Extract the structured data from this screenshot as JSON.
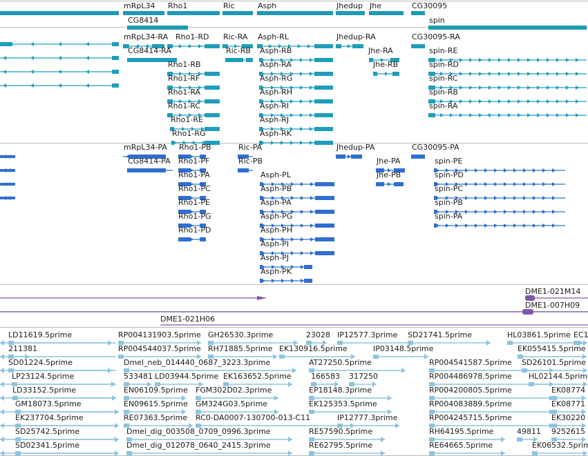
{
  "colors": {
    "gene": "#1e9bb0",
    "mrna": "#1f9dbb",
    "protein": "#2f6fd0",
    "clone": "#7f5aa8",
    "est": "#8cc4e2",
    "divider": "#b9b9b9"
  },
  "tracks": {
    "genes": {
      "features": [
        {
          "label": "mRpL34"
        },
        {
          "label": "Rho1"
        },
        {
          "label": "Ric"
        },
        {
          "label": "Asph"
        },
        {
          "label": "Jhedup"
        },
        {
          "label": "Jhe"
        },
        {
          "label": "CG30095"
        },
        {
          "label": "CG8414"
        },
        {
          "label": "spin"
        }
      ]
    },
    "mrnas": {
      "features": [
        {
          "label": "mRpL34-RA"
        },
        {
          "label": "Rho1-RD"
        },
        {
          "label": "Ric-RA"
        },
        {
          "label": "Asph-RL"
        },
        {
          "label": "Jhedup-RA"
        },
        {
          "label": "CG30095-RA"
        },
        {
          "label": "CG8414-RA"
        },
        {
          "label": "Ric-RB"
        },
        {
          "label": "Asph-RB"
        },
        {
          "label": "Jhe-RA"
        },
        {
          "label": "spin-RE"
        },
        {
          "label": "Rho1-RB"
        },
        {
          "label": "Asph-RA"
        },
        {
          "label": "Jhe-RB"
        },
        {
          "label": "spin-RD"
        },
        {
          "label": "Rho1-RF"
        },
        {
          "label": "Asph-RG"
        },
        {
          "label": "spin-RC"
        },
        {
          "label": "Rho1-RA"
        },
        {
          "label": "Asph-RH"
        },
        {
          "label": "spin-RB"
        },
        {
          "label": "Rho1-RC"
        },
        {
          "label": "Asph-RI"
        },
        {
          "label": "spin-RA"
        },
        {
          "label": "Rho1-RE"
        },
        {
          "label": "Asph-RJ"
        },
        {
          "label": "Rho1-RG"
        },
        {
          "label": "Asph-RK"
        }
      ]
    },
    "proteins": {
      "features": [
        {
          "label": "mRpL34-PA"
        },
        {
          "label": "Rho1-PB"
        },
        {
          "label": "Ric-PA"
        },
        {
          "label": "Jhedup-PA"
        },
        {
          "label": "CG30095-PA"
        },
        {
          "label": "CG8414-PA"
        },
        {
          "label": "Rho1-PF"
        },
        {
          "label": "Ric-PB"
        },
        {
          "label": "Jhe-PA"
        },
        {
          "label": "spin-PE"
        },
        {
          "label": "Rho1-PA"
        },
        {
          "label": "Asph-PL"
        },
        {
          "label": "Jhe-PB"
        },
        {
          "label": "spin-PD"
        },
        {
          "label": "Rho1-PC"
        },
        {
          "label": "Asph-PB"
        },
        {
          "label": "spin-PC"
        },
        {
          "label": "Rho1-PE"
        },
        {
          "label": "Asph-PA"
        },
        {
          "label": "spin-PB"
        },
        {
          "label": "Rho1-PG"
        },
        {
          "label": "Asph-PG"
        },
        {
          "label": "spin-PA"
        },
        {
          "label": "Rho1-PD"
        },
        {
          "label": "Asph-PH"
        },
        {
          "label": "Asph-PI"
        },
        {
          "label": "Asph-PJ"
        },
        {
          "label": "Asph-PK"
        }
      ]
    },
    "clones": {
      "features": [
        {
          "label": "DME1-021M14"
        },
        {
          "label": "DME1-007H09"
        },
        {
          "label": "DME1-021H06"
        }
      ]
    },
    "ests": {
      "features": [
        {
          "label": "LD11619.5prime"
        },
        {
          "label": "RP004131903.5prime"
        },
        {
          "label": "GH26530.3prime"
        },
        {
          "label": "23028"
        },
        {
          "label": "IP12577.3prime"
        },
        {
          "label": "SD21741.5prime"
        },
        {
          "label": "HL03861.5prime"
        },
        {
          "label": "EC1"
        },
        {
          "label": "211381"
        },
        {
          "label": "RP004544037.5prime"
        },
        {
          "label": "RH71885.5prime"
        },
        {
          "label": "EK130916.5prime"
        },
        {
          "label": "IP03148.5prime"
        },
        {
          "label": "EK055415.5prime"
        },
        {
          "label": "SD01224.5prime"
        },
        {
          "label": "Dmel_neb_014440_0687_3223.3prime"
        },
        {
          "label": "AT27250.5prime"
        },
        {
          "label": "RP004541587.5prime"
        },
        {
          "label": "SD26101.5prime"
        },
        {
          "label": "LP23124.5prime"
        },
        {
          "label": "533481"
        },
        {
          "label": "LD03944.5prime"
        },
        {
          "label": "EK163652.5prime"
        },
        {
          "label": "166583"
        },
        {
          "label": "317250"
        },
        {
          "label": "RP004486978.5prime"
        },
        {
          "label": "HL02144.5prime"
        },
        {
          "label": "LD33152.5prime"
        },
        {
          "label": "EN06109.5prime"
        },
        {
          "label": "FGM302D02.3prime"
        },
        {
          "label": "EP18148.3prime"
        },
        {
          "label": "RP004200805.5prime"
        },
        {
          "label": "EK08774"
        },
        {
          "label": "GM18073.5prime"
        },
        {
          "label": "EN09615.5prime"
        },
        {
          "label": "GM324G03.5prime"
        },
        {
          "label": "EK125353.5prime"
        },
        {
          "label": "RP004083889.5prime"
        },
        {
          "label": "EK08771"
        },
        {
          "label": "EK237704.5prime"
        },
        {
          "label": "RE07363.5prime"
        },
        {
          "label": "RC0-DA0007-130700-013-C11"
        },
        {
          "label": "IP12777.3prime"
        },
        {
          "label": "RP004245715.5prime"
        },
        {
          "label": "EK30220"
        },
        {
          "label": "SD25742.5prime"
        },
        {
          "label": "Dmel_dig_003508_0709_0996.3prime"
        },
        {
          "label": "RE57590.5prime"
        },
        {
          "label": "RH64195.5prime"
        },
        {
          "label": "49811"
        },
        {
          "label": "9252615"
        },
        {
          "label": "SD02341.5prime"
        },
        {
          "label": "Dmel_dig_012078_0640_2415.3prime"
        },
        {
          "label": "RE62795.5prime"
        },
        {
          "label": "RE64665.5prime"
        },
        {
          "label": "EK06532.5prime"
        }
      ]
    }
  }
}
